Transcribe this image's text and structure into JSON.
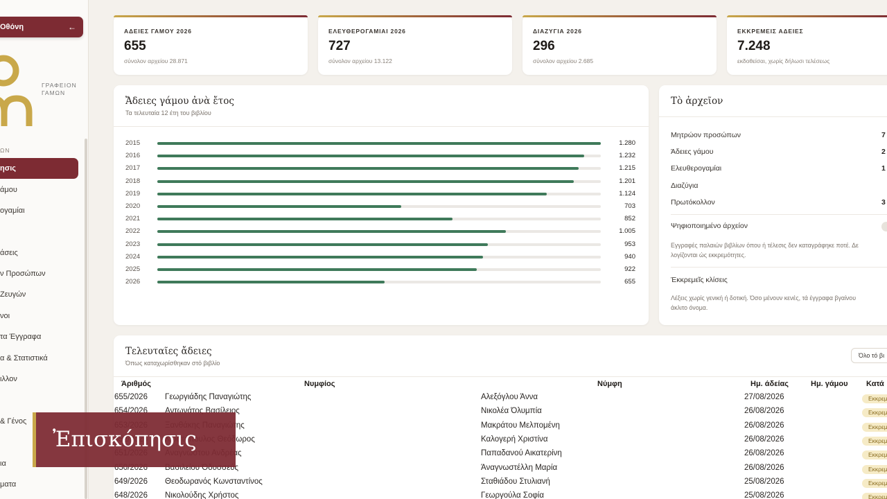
{
  "sidebar": {
    "top_button": "Οθόνη",
    "top_arrow": "←",
    "logo_text": [
      "ΓΡΑΦΕΙΟΝ",
      "ΓΑΜΩΝ"
    ],
    "section_1": "ΩΝ",
    "active_item": "ησις",
    "items": [
      "άμου",
      "ογαμίαι",
      "άσεις",
      "ν Προσώπων",
      "Ζευγών",
      "νοι",
      "τα Έγγραφα",
      "α & Στατιστικά",
      "ιλλον",
      "& Γένος",
      "ια",
      "ματα"
    ]
  },
  "stats": [
    {
      "label": "ΑΔΕΙΕΣ ΓΑΜΟΥ 2026",
      "value": "655",
      "sub": "σύνολον αρχείου 28.871"
    },
    {
      "label": "ΕΛΕΥΘΕΡΟΓΑΜΙΑΙ 2026",
      "value": "727",
      "sub": "σύνολον αρχείου 13.122"
    },
    {
      "label": "ΔΙΑΖΥΓΙΑ 2026",
      "value": "296",
      "sub": "σύνολον αρχείου 2.685"
    },
    {
      "label": "ΕΚΚΡΕΜΕΙΣ ΑΔΕΙΕΣ",
      "value": "7.248",
      "sub": "εκδοθείσαι, χωρίς δήλωσι τελέσεως"
    }
  ],
  "chart_panel": {
    "title": "Ἄδειες γάμου ἀνὰ ἔτος",
    "subtitle": "Τα τελευταία 12 έτη του βιβλίου"
  },
  "chart_data": {
    "type": "bar",
    "orientation": "horizontal",
    "categories": [
      "2015",
      "2016",
      "2017",
      "2018",
      "2019",
      "2020",
      "2021",
      "2022",
      "2023",
      "2024",
      "2025",
      "2026"
    ],
    "values": [
      1280,
      1232,
      1215,
      1201,
      1124,
      703,
      852,
      1005,
      953,
      940,
      922,
      655
    ],
    "labels": [
      "1.280",
      "1.232",
      "1.215",
      "1.201",
      "1.124",
      "703",
      "852",
      "1.005",
      "953",
      "940",
      "922",
      "655"
    ],
    "xlim": [
      0,
      1280
    ],
    "color": "#3f7a5a"
  },
  "archive": {
    "title": "Τὸ ἀρχεῖον",
    "rows": [
      {
        "label": "Μητρώον προσώπων",
        "value": "7"
      },
      {
        "label": "Άδειες γάμου",
        "value": "2"
      },
      {
        "label": "Ελευθερογαμίαι",
        "value": "1"
      },
      {
        "label": "Διαζύγια",
        "value": ""
      },
      {
        "label": "Πρωτόκολλον",
        "value": "3"
      }
    ],
    "digitized_label": "Ψηφιοποιημένο άρχείον",
    "digitized_note": [
      "Εγγραφές παλαιών βιβλίων όπου ή τέλεσις δεν καταγράφηκε ποτέ. Δε",
      "λογίζονται ώς εκκρεμότητες."
    ],
    "pending_label": "Έκκρεμεῖς κλίσεις",
    "pending_note": [
      "Λέξεις χωρίς γενική ή δοτική. Όσο μένουν κενές, τά έγγραφα βγαίνου",
      "άκλιτο όνομα."
    ]
  },
  "table": {
    "title": "Τελευταῖες ἄδειες",
    "subtitle": "Όπως καταχωρίσθηκαν στό βιβλίο",
    "all_button": "Όλο τό βι",
    "headers": {
      "num": "Άριθμός",
      "groom": "Νυμφίος",
      "bride": "Νύμφη",
      "date": "Ημ. άδείας",
      "wedding": "Ημ. γάμου",
      "status": "Κατά"
    },
    "rows": [
      {
        "num": "655/2026",
        "groom": "Γεωργιάδης Παναγιώτης",
        "bride": "Αλεξόγλου Άννα",
        "date": "27/08/2026",
        "status": "Εκκρεμ"
      },
      {
        "num": "654/2026",
        "groom": "Αντωνάτος Βασίλειος",
        "bride": "Νικολέα Όλυμπία",
        "date": "26/08/2026",
        "status": "Εκκρεμ"
      },
      {
        "num": "653/2026",
        "groom": "Ξανθάκης Παναγιώτης",
        "bride": "Μακράτου Μελπομένη",
        "date": "26/08/2026",
        "status": "Εκκρεμ"
      },
      {
        "num": "652/2026",
        "groom": "Κωστόπουλος Θεόδωρος",
        "bride": "Καλογερή Χριστίνα",
        "date": "26/08/2026",
        "status": "Εκκρεμ"
      },
      {
        "num": "651/2026",
        "groom": "Αναγνώστου Ανδρέας",
        "bride": "Παπαδανού Αικατερίνη",
        "date": "26/08/2026",
        "status": "Εκκρεμ"
      },
      {
        "num": "650/2026",
        "groom": "Βασιλείου Όδυσσεύς",
        "bride": "Άναγνωστέλλη Μαρία",
        "date": "26/08/2026",
        "status": "Εκκρεμ"
      },
      {
        "num": "649/2026",
        "groom": "Θεοδωρανός Κωνσταντίνος",
        "bride": "Σταθιάδου Στυλιανή",
        "date": "25/08/2026",
        "status": "Εκκρεμ"
      },
      {
        "num": "648/2026",
        "groom": "Νικολούδης Χρήστος",
        "bride": "Γεωργούλα Σοφία",
        "date": "25/08/2026",
        "status": "Εκκρεμ"
      }
    ]
  },
  "caption": "Ἐπισκόπησις",
  "colors": {
    "accent": "#7d2b33",
    "gold": "#c9a84a",
    "bar": "#3f7a5a",
    "background": "#f4f1ec"
  }
}
